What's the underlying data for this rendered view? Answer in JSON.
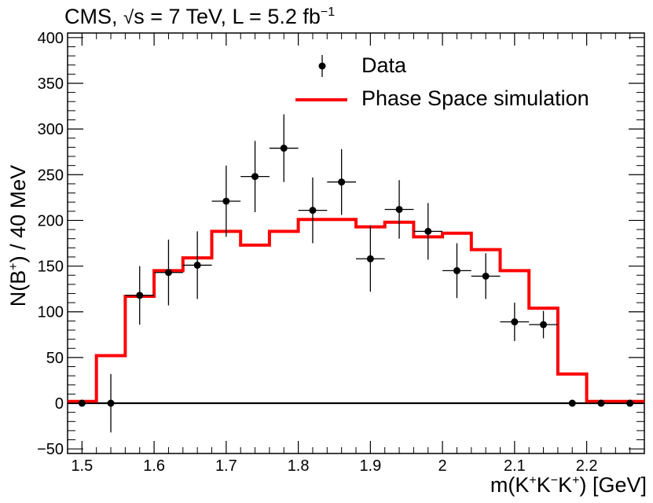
{
  "chart_data": {
    "type": "histogram",
    "title": {
      "prefix": "CMS, ",
      "sqrt_symbol": "√",
      "s_part": "s = 7 TeV, L = 5.2 fb",
      "sup": "−1"
    },
    "ylabel": {
      "pre": "N(B",
      "sup": "+",
      "post": ") / 40 MeV"
    },
    "xlabel": {
      "pre": "m(K",
      "sup1": "+",
      "mid1": "K",
      "sup2": "−",
      "mid2": "K",
      "sup3": "+",
      "post": ") [GeV]"
    },
    "xlim": [
      1.48,
      2.28
    ],
    "ylim": [
      -55,
      405
    ],
    "x_ticks": [
      1.5,
      1.6,
      1.7,
      1.8,
      1.9,
      2.0,
      2.1,
      2.2
    ],
    "x_tick_labels": [
      "1.5",
      "1.6",
      "1.7",
      "1.8",
      "1.9",
      "2",
      "2.1",
      "2.2"
    ],
    "y_ticks": [
      -50,
      0,
      50,
      100,
      150,
      200,
      250,
      300,
      350,
      400
    ],
    "y_tick_labels": [
      "−50",
      "0",
      "50",
      "100",
      "150",
      "200",
      "250",
      "300",
      "350",
      "400"
    ],
    "bin_width": 0.04,
    "legend": [
      {
        "label": "Data",
        "style": "marker"
      },
      {
        "label": "Phase Space simulation",
        "style": "line",
        "color": "#ff0000"
      }
    ],
    "data_points": [
      {
        "x": 1.5,
        "y": 0,
        "err": 0
      },
      {
        "x": 1.54,
        "y": 0,
        "err": 32
      },
      {
        "x": 1.58,
        "y": 118,
        "err": 32
      },
      {
        "x": 1.62,
        "y": 143,
        "err": 36
      },
      {
        "x": 1.66,
        "y": 151,
        "err": 37
      },
      {
        "x": 1.7,
        "y": 221,
        "err": 39
      },
      {
        "x": 1.74,
        "y": 248,
        "err": 39
      },
      {
        "x": 1.78,
        "y": 279,
        "err": 37
      },
      {
        "x": 1.82,
        "y": 211,
        "err": 36
      },
      {
        "x": 1.86,
        "y": 242,
        "err": 36
      },
      {
        "x": 1.9,
        "y": 158,
        "err": 36
      },
      {
        "x": 1.94,
        "y": 212,
        "err": 32
      },
      {
        "x": 1.98,
        "y": 188,
        "err": 31
      },
      {
        "x": 2.02,
        "y": 145,
        "err": 30
      },
      {
        "x": 2.06,
        "y": 139,
        "err": 25
      },
      {
        "x": 2.1,
        "y": 89,
        "err": 21
      },
      {
        "x": 2.14,
        "y": 86,
        "err": 15
      },
      {
        "x": 2.18,
        "y": 0,
        "err": 0
      },
      {
        "x": 2.22,
        "y": 0,
        "err": 0
      },
      {
        "x": 2.26,
        "y": 0,
        "err": 0
      }
    ],
    "simulation_bins": {
      "edges": [
        1.48,
        1.52,
        1.56,
        1.6,
        1.64,
        1.68,
        1.72,
        1.76,
        1.8,
        1.84,
        1.88,
        1.92,
        1.96,
        2.0,
        2.04,
        2.08,
        2.12,
        2.16,
        2.2,
        2.24,
        2.28
      ],
      "values": [
        2,
        52,
        117,
        145,
        159,
        188,
        173,
        188,
        201,
        201,
        193,
        198,
        182,
        186,
        168,
        145,
        104,
        32,
        2,
        2
      ],
      "color": "#ff0000"
    },
    "zero_line": 0
  }
}
